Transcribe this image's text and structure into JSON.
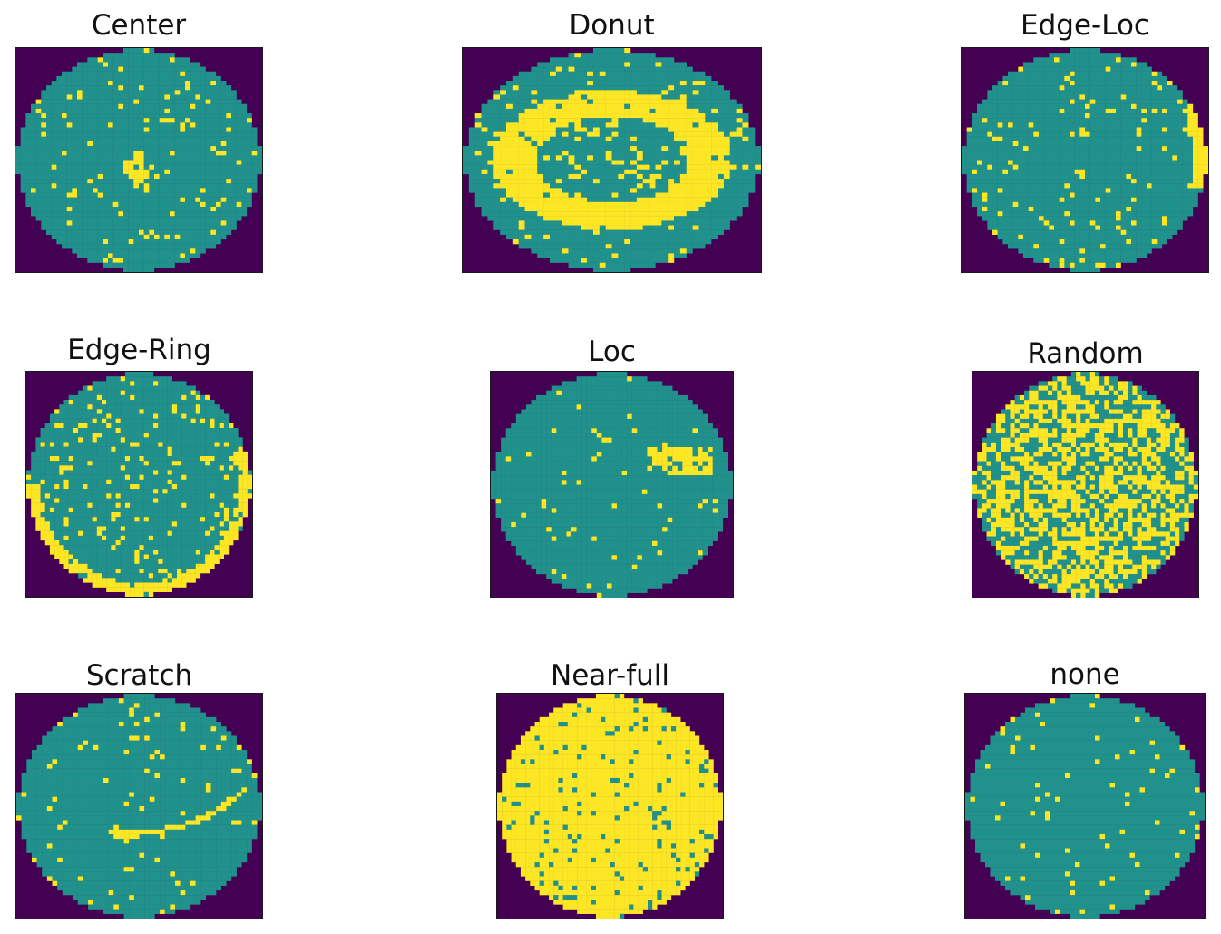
{
  "colors": {
    "background_outside": "#440154",
    "wafer_pass": "#21918c",
    "wafer_fail": "#fde725"
  },
  "panels": [
    {
      "title": "Center",
      "pattern": "center"
    },
    {
      "title": "Donut",
      "pattern": "donut"
    },
    {
      "title": "Edge-Loc",
      "pattern": "edge-loc"
    },
    {
      "title": "Edge-Ring",
      "pattern": "edge-ring"
    },
    {
      "title": "Loc",
      "pattern": "loc"
    },
    {
      "title": "Random",
      "pattern": "random"
    },
    {
      "title": "Scratch",
      "pattern": "scratch"
    },
    {
      "title": "Near-full",
      "pattern": "near-full"
    },
    {
      "title": "none",
      "pattern": "none"
    }
  ]
}
